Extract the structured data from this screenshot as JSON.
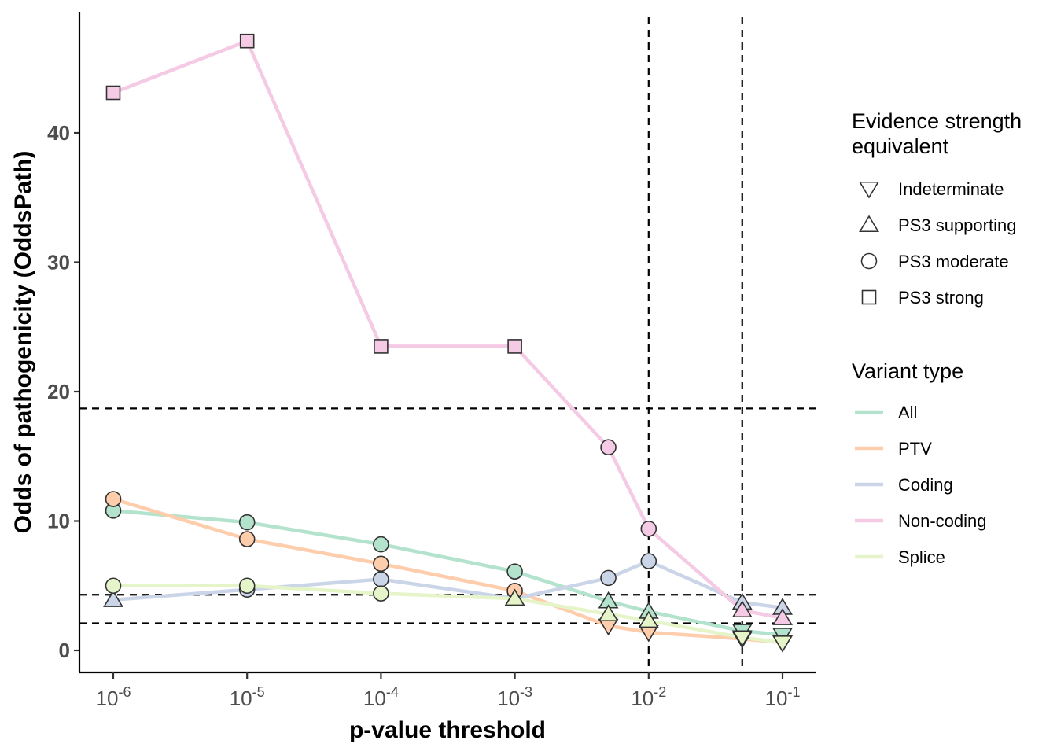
{
  "chart_data": {
    "type": "line",
    "title": "",
    "xlabel": "p-value threshold",
    "ylabel": "Odds of pathogenicity (OddsPath)",
    "x_scale": "log10",
    "xlim": [
      1e-06,
      0.1
    ],
    "ylim": [
      0,
      48
    ],
    "x_ticks": [
      {
        "value": 1e-06,
        "base": "10",
        "exp": "-6"
      },
      {
        "value": 1e-05,
        "base": "10",
        "exp": "-5"
      },
      {
        "value": 0.0001,
        "base": "10",
        "exp": "-4"
      },
      {
        "value": 0.001,
        "base": "10",
        "exp": "-3"
      },
      {
        "value": 0.01,
        "base": "10",
        "exp": "-2"
      },
      {
        "value": 0.1,
        "base": "10",
        "exp": "-1"
      }
    ],
    "y_ticks": [
      0,
      10,
      20,
      30,
      40
    ],
    "grid": false,
    "reference_lines": {
      "horizontal": [
        18.7,
        4.3,
        2.1
      ],
      "vertical": [
        0.01,
        0.05
      ]
    },
    "x": [
      1e-06,
      1e-05,
      0.0001,
      0.001,
      0.005,
      0.01,
      0.05,
      0.1
    ],
    "series": [
      {
        "name": "All",
        "color": "#b3e2cd",
        "values": [
          10.8,
          9.9,
          8.2,
          6.1,
          3.8,
          3.0,
          1.5,
          1.2
        ],
        "shapes": [
          "circle",
          "circle",
          "circle",
          "circle",
          "triangle-up",
          "triangle-up",
          "triangle-down",
          "triangle-down"
        ]
      },
      {
        "name": "PTV",
        "color": "#fdcdac",
        "values": [
          11.7,
          8.6,
          6.7,
          4.6,
          1.9,
          1.4,
          0.9,
          0.6
        ],
        "shapes": [
          "circle",
          "circle",
          "circle",
          "circle",
          "triangle-down",
          "triangle-down",
          "triangle-down",
          "triangle-down"
        ]
      },
      {
        "name": "Coding",
        "color": "#cbd5e8",
        "values": [
          3.9,
          4.7,
          5.5,
          4.0,
          5.6,
          6.9,
          3.7,
          3.3
        ],
        "shapes": [
          "triangle-up",
          "circle",
          "circle",
          "triangle-up",
          "circle",
          "circle",
          "triangle-up",
          "triangle-up"
        ]
      },
      {
        "name": "Non-coding",
        "color": "#f4cae4",
        "values": [
          43.1,
          47.1,
          23.5,
          23.5,
          15.7,
          9.4,
          3.1,
          2.5
        ],
        "shapes": [
          "square",
          "square",
          "square",
          "square",
          "circle",
          "circle",
          "triangle-up",
          "triangle-up"
        ]
      },
      {
        "name": "Splice",
        "color": "#e6f5c9",
        "values": [
          5.0,
          5.0,
          4.4,
          4.0,
          2.8,
          2.3,
          1.0,
          0.6
        ],
        "shapes": [
          "circle",
          "circle",
          "circle",
          "triangle-up",
          "triangle-up",
          "triangle-up",
          "triangle-down",
          "triangle-down"
        ]
      }
    ],
    "legend": {
      "placement": "right",
      "shape_legend": {
        "title_line1": "Evidence strength",
        "title_line2": "equivalent",
        "items": [
          {
            "shape": "triangle-down",
            "label": "Indeterminate"
          },
          {
            "shape": "triangle-up",
            "label": "PS3 supporting"
          },
          {
            "shape": "circle",
            "label": "PS3 moderate"
          },
          {
            "shape": "square",
            "label": "PS3 strong"
          }
        ]
      },
      "color_legend": {
        "title": "Variant type",
        "items": [
          {
            "label": "All",
            "color": "#b3e2cd"
          },
          {
            "label": "PTV",
            "color": "#fdcdac"
          },
          {
            "label": "Coding",
            "color": "#cbd5e8"
          },
          {
            "label": "Non-coding",
            "color": "#f4cae4"
          },
          {
            "label": "Splice",
            "color": "#e6f5c9"
          }
        ]
      }
    }
  }
}
